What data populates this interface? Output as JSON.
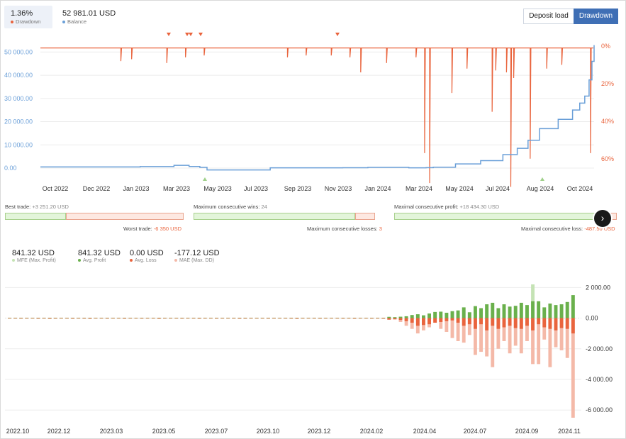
{
  "header": {
    "drawdown_value": "1.36%",
    "drawdown_label": "Drawdown",
    "balance_value": "52 981.01 USD",
    "balance_label": "Balance",
    "buttons": {
      "deposit_load": "Deposit load",
      "drawdown": "Drawdown"
    }
  },
  "colors": {
    "balance": "#6a9fd8",
    "drawdown": "#e9643d",
    "profit": "#6ab04c",
    "mfe": "#c5e3b5",
    "loss": "#e9643d",
    "mae": "#f4b9a8"
  },
  "chart_data": [
    {
      "type": "line",
      "x_tick_labels": [
        "Oct 2022",
        "Dec 2022",
        "Jan 2023",
        "Mar 2023",
        "May 2023",
        "Jul 2023",
        "Sep 2023",
        "Nov 2023",
        "Jan 2024",
        "Mar 2024",
        "May 2024",
        "Jul 2024",
        "Aug 2024",
        "Oct 2024"
      ],
      "y_left_ticks": [
        "0.00",
        "10 000.00",
        "20 000.00",
        "30 000.00",
        "40 000.00",
        "50 000.00"
      ],
      "y_right_ticks": [
        "0%",
        "20%",
        "40%",
        "60%"
      ],
      "ylim_left": [
        0,
        55000
      ],
      "ylim_right_pct": [
        0,
        65
      ],
      "x_range": [
        "2022-09-15",
        "2024-10-25"
      ],
      "series": [
        {
          "name": "Balance",
          "axis": "left",
          "x": [
            "2022-09-15",
            "2023-02-01",
            "2023-03-20",
            "2023-04-10",
            "2023-04-25",
            "2023-05-05",
            "2023-08-01",
            "2023-11-10",
            "2023-12-15",
            "2024-02-10",
            "2024-03-05",
            "2024-03-15",
            "2024-04-15",
            "2024-05-20",
            "2024-06-20",
            "2024-07-10",
            "2024-07-25",
            "2024-08-10",
            "2024-09-05",
            "2024-09-25",
            "2024-10-05",
            "2024-10-12",
            "2024-10-18",
            "2024-10-22",
            "2024-10-25"
          ],
          "values": [
            500,
            650,
            1200,
            700,
            300,
            -800,
            100,
            150,
            300,
            100,
            200,
            400,
            1800,
            3200,
            5800,
            8500,
            12000,
            17000,
            21000,
            25000,
            28000,
            31000,
            38000,
            46000,
            52981
          ]
        },
        {
          "name": "Drawdown",
          "axis": "right",
          "x": [
            "2023-01-05",
            "2023-01-20",
            "2023-03-10",
            "2023-04-05",
            "2023-05-01",
            "2023-08-25",
            "2023-09-20",
            "2023-10-25",
            "2023-11-20",
            "2023-12-05",
            "2024-01-10",
            "2024-02-20",
            "2024-03-03",
            "2024-03-10",
            "2024-04-10",
            "2024-05-01",
            "2024-06-05",
            "2024-06-10",
            "2024-06-25",
            "2024-07-01",
            "2024-07-05",
            "2024-07-28",
            "2024-08-20",
            "2024-09-10",
            "2024-10-20"
          ],
          "values": [
            8,
            7,
            9,
            6,
            5,
            6,
            5,
            5,
            6,
            14,
            9,
            6,
            57,
            73,
            25,
            12,
            35,
            13,
            14,
            75,
            17,
            60,
            12,
            10,
            57
          ]
        }
      ]
    },
    {
      "type": "bar",
      "y_ticks": [
        "2 000.00",
        "0.00",
        "-2 000.00",
        "-4 000.00",
        "-6 000.00"
      ],
      "ylim": [
        -6500,
        2200
      ],
      "x_tick_labels": [
        "2022.10",
        "2022.12",
        "2023.03",
        "2023.05",
        "2023.07",
        "2023.10",
        "2023.12",
        "2024.02",
        "2024.04",
        "2024.07",
        "2024.09",
        "2024.11"
      ],
      "summary": [
        {
          "value": "841.32 USD",
          "label": "MFE (Max. Profit)"
        },
        {
          "value": "841.32 USD",
          "label": "Avg. Profit"
        },
        {
          "value": "0.00 USD",
          "label": "Avg. Loss"
        },
        {
          "value": "-177.12 USD",
          "label": "MAE (Max. DD)"
        }
      ],
      "series": [
        {
          "name": "MFE (Max. Profit)",
          "values": [
            20,
            20,
            20,
            20,
            20,
            20,
            20,
            20,
            20,
            20,
            20,
            20,
            20,
            20,
            20,
            20,
            20,
            20,
            20,
            20,
            20,
            20,
            20,
            20,
            20,
            20,
            20,
            20,
            20,
            20,
            20,
            20,
            20,
            20,
            20,
            20,
            20,
            20,
            20,
            20,
            20,
            20,
            20,
            20,
            20,
            20,
            20,
            20,
            20,
            20,
            20,
            20,
            20,
            20,
            20,
            20,
            20,
            20,
            20,
            20,
            20,
            20,
            20,
            20,
            20,
            20,
            80,
            60,
            90,
            120,
            200,
            250,
            180,
            300,
            400,
            420,
            350,
            450,
            500,
            700,
            380,
            780,
            650,
            900,
            1000,
            650,
            900,
            750,
            800,
            1000,
            850,
            2200,
            1100,
            700,
            950,
            850,
            900,
            1050,
            1500
          ]
        },
        {
          "name": "Avg. Profit",
          "values": [
            20,
            20,
            20,
            20,
            20,
            20,
            20,
            20,
            20,
            20,
            20,
            20,
            20,
            20,
            20,
            20,
            20,
            20,
            20,
            20,
            20,
            20,
            20,
            20,
            20,
            20,
            20,
            20,
            20,
            20,
            20,
            20,
            20,
            20,
            20,
            20,
            20,
            20,
            20,
            20,
            20,
            20,
            20,
            20,
            20,
            20,
            20,
            20,
            20,
            20,
            20,
            20,
            20,
            20,
            20,
            20,
            20,
            20,
            20,
            20,
            20,
            20,
            20,
            20,
            20,
            20,
            80,
            60,
            90,
            120,
            200,
            250,
            180,
            300,
            400,
            420,
            350,
            450,
            500,
            700,
            380,
            780,
            650,
            900,
            1000,
            650,
            900,
            750,
            800,
            1000,
            850,
            1100,
            1100,
            700,
            950,
            850,
            900,
            1050,
            1500
          ]
        },
        {
          "name": "Avg. Loss",
          "values": [
            -5,
            -5,
            -5,
            -5,
            -5,
            -5,
            -5,
            -5,
            -5,
            -5,
            -5,
            -5,
            -5,
            -5,
            -5,
            -5,
            -5,
            -5,
            -5,
            -5,
            -5,
            -5,
            -5,
            -5,
            -5,
            -5,
            -5,
            -5,
            -5,
            -5,
            -5,
            -5,
            -5,
            -5,
            -5,
            -5,
            -5,
            -5,
            -5,
            -5,
            -5,
            -5,
            -5,
            -5,
            -5,
            -5,
            -5,
            -5,
            -5,
            -5,
            -5,
            -5,
            -5,
            -5,
            -5,
            -5,
            -5,
            -5,
            -5,
            -5,
            -5,
            -5,
            -5,
            -5,
            -5,
            -5,
            -100,
            -80,
            -120,
            -200,
            -300,
            -500,
            -450,
            -400,
            -300,
            -250,
            -200,
            -150,
            -300,
            -500,
            -400,
            -700,
            -400,
            -800,
            -500,
            -700,
            -600,
            -500,
            -650,
            -700,
            -500,
            -800,
            -400,
            -600,
            -700,
            -800,
            -650,
            -700,
            -1000
          ]
        },
        {
          "name": "MAE (Max. DD)",
          "values": [
            -20,
            -30,
            -40,
            -30,
            -20,
            -50,
            -30,
            -60,
            -40,
            -20,
            -30,
            -50,
            -30,
            -40,
            -60,
            -20,
            -30,
            -40,
            -20,
            -30,
            -50,
            -30,
            -20,
            -40,
            -30,
            -20,
            -60,
            -30,
            -20,
            -30,
            -40,
            -20,
            -30,
            -50,
            -30,
            -20,
            -40,
            -30,
            -20,
            -30,
            -50,
            -40,
            -30,
            -20,
            -30,
            -40,
            -30,
            -20,
            -30,
            -40,
            -60,
            -30,
            -20,
            -30,
            -40,
            -30,
            -20,
            -30,
            -40,
            -30,
            -50,
            -20,
            -30,
            -40,
            -30,
            -50,
            -100,
            -80,
            -250,
            -500,
            -700,
            -1000,
            -800,
            -600,
            -300,
            -700,
            -900,
            -1300,
            -1500,
            -1600,
            -1100,
            -2400,
            -2200,
            -2500,
            -3200,
            -2000,
            -1500,
            -2300,
            -1800,
            -2300,
            -1500,
            -3000,
            -3000,
            -1400,
            -3200,
            -1900,
            -2100,
            -2600,
            -6500
          ]
        }
      ]
    }
  ],
  "stats": {
    "best_trade": {
      "label": "Best trade:",
      "value": "+3 251.20 USD"
    },
    "worst_trade": {
      "label": "Worst trade:",
      "value": "-6 350 USD"
    },
    "max_consec_wins": {
      "label": "Maximum consecutive wins:",
      "value": "24"
    },
    "max_consec_losses": {
      "label": "Maximum consecutive losses:",
      "value": "3"
    },
    "maximal_consec_profit": {
      "label": "Maximal consecutive profit:",
      "value": "+18 434.30 USD"
    },
    "maximal_consec_loss": {
      "label": "Maximal consecutive loss:",
      "value": "-487.50 USD"
    },
    "best_fraction": 0.34,
    "wins_fraction": 0.89,
    "profit_fraction": 0.97
  }
}
